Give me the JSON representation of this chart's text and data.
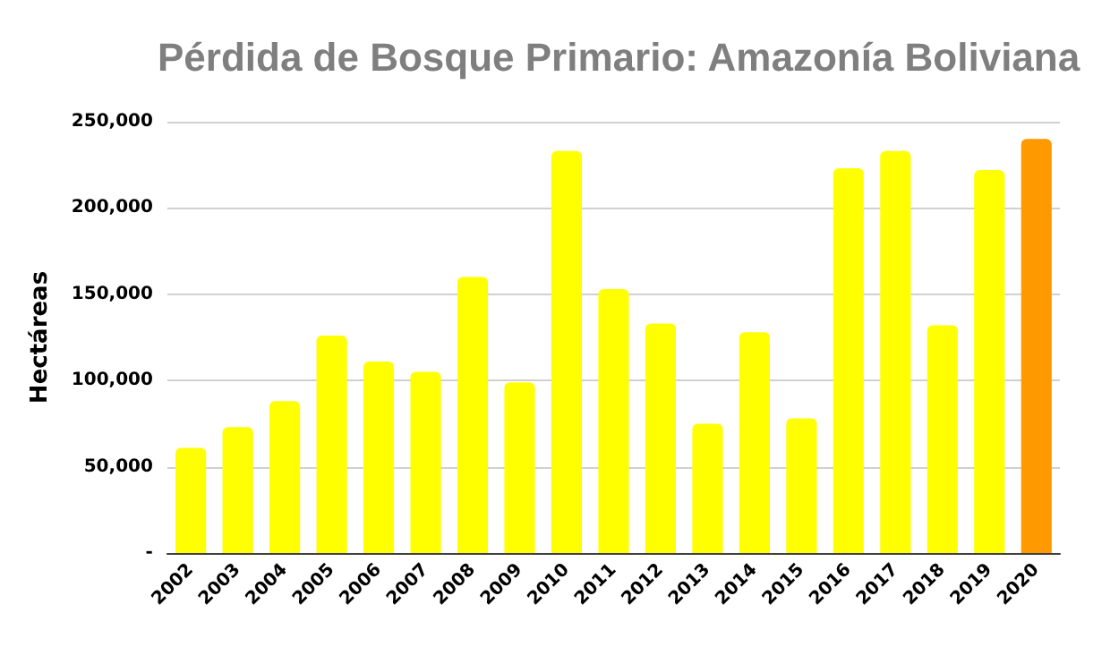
{
  "chart_data": {
    "type": "bar",
    "title": "Pérdida de Bosque Primario: Amazonía Boliviana",
    "ylabel": "Hectáreas",
    "categories": [
      "2002",
      "2003",
      "2004",
      "2005",
      "2006",
      "2007",
      "2008",
      "2009",
      "2010",
      "2011",
      "2012",
      "2013",
      "2014",
      "2015",
      "2016",
      "2017",
      "2018",
      "2019",
      "2020"
    ],
    "values": [
      61000,
      73000,
      88000,
      126000,
      111000,
      105000,
      160000,
      99000,
      233000,
      153000,
      133000,
      75000,
      128000,
      78000,
      223000,
      233000,
      132000,
      222000,
      240000
    ],
    "colors": [
      "#ffff00",
      "#ffff00",
      "#ffff00",
      "#ffff00",
      "#ffff00",
      "#ffff00",
      "#ffff00",
      "#ffff00",
      "#ffff00",
      "#ffff00",
      "#ffff00",
      "#ffff00",
      "#ffff00",
      "#ffff00",
      "#ffff00",
      "#ffff00",
      "#ffff00",
      "#ffff00",
      "#ff9900"
    ],
    "ylim": [
      0,
      250000
    ],
    "yticks": [
      {
        "value": 0,
        "label": "-"
      },
      {
        "value": 50000,
        "label": "50,000"
      },
      {
        "value": 100000,
        "label": "100,000"
      },
      {
        "value": 150000,
        "label": "150,000"
      },
      {
        "value": 200000,
        "label": "200,000"
      },
      {
        "value": 250000,
        "label": "250,000"
      }
    ],
    "grid": "y"
  }
}
